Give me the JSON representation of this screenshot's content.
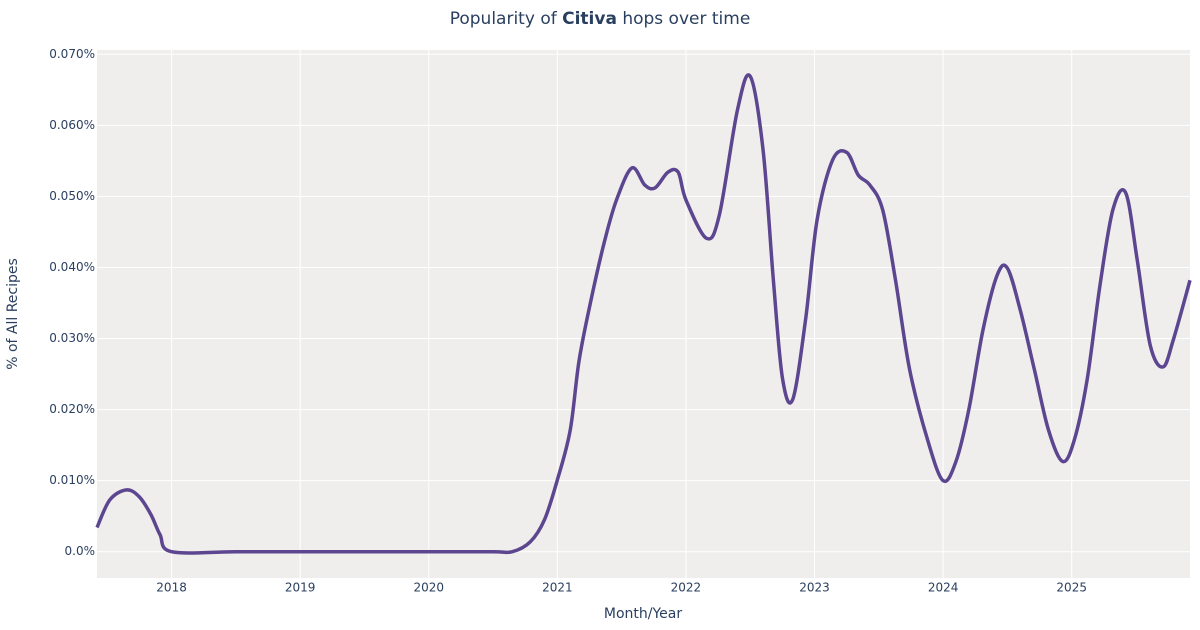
{
  "chart_data": {
    "type": "line",
    "title": [
      "Popularity of ",
      "Citiva",
      " hops over time"
    ],
    "x_label": "Month/Year",
    "y_label": "% of All Recipes",
    "x": [
      2017.42,
      2017.52,
      2017.65,
      2017.75,
      2017.84,
      2017.91,
      2018.0,
      2018.5,
      2019.0,
      2019.5,
      2020.0,
      2020.5,
      2020.65,
      2020.79,
      2020.9,
      2021.0,
      2021.1,
      2021.17,
      2021.27,
      2021.37,
      2021.46,
      2021.58,
      2021.68,
      2021.76,
      2021.86,
      2021.94,
      2022.0,
      2022.16,
      2022.26,
      2022.4,
      2022.5,
      2022.6,
      2022.68,
      2022.75,
      2022.83,
      2022.93,
      2023.02,
      2023.14,
      2023.25,
      2023.34,
      2023.43,
      2023.53,
      2023.63,
      2023.74,
      2023.88,
      2024.0,
      2024.1,
      2024.2,
      2024.31,
      2024.42,
      2024.5,
      2024.6,
      2024.71,
      2024.82,
      2024.93,
      2025.02,
      2025.12,
      2025.22,
      2025.32,
      2025.42,
      2025.51,
      2025.61,
      2025.71,
      2025.79,
      2025.92
    ],
    "series": [
      {
        "name": "Citiva",
        "color": "#5c4690",
        "values": [
          0.0034,
          0.0073,
          0.0087,
          0.0077,
          0.0052,
          0.0024,
          0,
          0,
          0,
          0,
          0,
          0,
          0,
          0.0014,
          0.0045,
          0.0101,
          0.0171,
          0.027,
          0.0361,
          0.0439,
          0.0495,
          0.054,
          0.0516,
          0.0512,
          0.0534,
          0.0534,
          0.0495,
          0.0441,
          0.0474,
          0.0621,
          0.0669,
          0.0565,
          0.0382,
          0.0245,
          0.0214,
          0.0326,
          0.0467,
          0.0551,
          0.0562,
          0.053,
          0.0516,
          0.0481,
          0.0382,
          0.0256,
          0.0157,
          0.01,
          0.0127,
          0.02,
          0.0312,
          0.0389,
          0.0399,
          0.034,
          0.0256,
          0.0171,
          0.0127,
          0.0157,
          0.0242,
          0.0375,
          0.0481,
          0.0505,
          0.041,
          0.0291,
          0.026,
          0.0298,
          0.0382
        ]
      }
    ],
    "xlim": [
      2017.42,
      2025.92
    ],
    "xticks": [
      2018,
      2019,
      2020,
      2021,
      2022,
      2023,
      2024,
      2025
    ],
    "ylim": [
      -0.0037,
      0.0706
    ],
    "yticks": [
      {
        "value": 0,
        "label": "0.0%"
      },
      {
        "value": 0.01,
        "label": "0.010%"
      },
      {
        "value": 0.02,
        "label": "0.020%"
      },
      {
        "value": 0.03,
        "label": "0.030%"
      },
      {
        "value": 0.04,
        "label": "0.040%"
      },
      {
        "value": 0.05,
        "label": "0.050%"
      },
      {
        "value": 0.06,
        "label": "0.060%"
      },
      {
        "value": 0.07,
        "label": "0.070%"
      }
    ],
    "grid": true
  }
}
